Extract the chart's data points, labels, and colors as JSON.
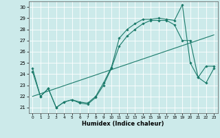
{
  "xlabel": "Humidex (Indice chaleur)",
  "background_color": "#cceaea",
  "grid_color": "#ffffff",
  "line_color": "#1a7a6a",
  "xlim": [
    -0.5,
    23.5
  ],
  "ylim": [
    20.5,
    30.5
  ],
  "yticks": [
    21,
    22,
    23,
    24,
    25,
    26,
    27,
    28,
    29,
    30
  ],
  "xticks": [
    0,
    1,
    2,
    3,
    4,
    5,
    6,
    7,
    8,
    9,
    10,
    11,
    12,
    13,
    14,
    15,
    16,
    17,
    18,
    19,
    20,
    21,
    22,
    23
  ],
  "series": [
    {
      "x": [
        0,
        1,
        2,
        3,
        4,
        5,
        6,
        7,
        8,
        9,
        10,
        11,
        12,
        13,
        14,
        15,
        16,
        17,
        18,
        19,
        20,
        21,
        22,
        23
      ],
      "y": [
        24.5,
        22.0,
        22.7,
        21.0,
        21.5,
        21.7,
        21.5,
        21.4,
        22.0,
        23.2,
        24.6,
        27.2,
        28.0,
        28.5,
        28.9,
        28.9,
        29.0,
        28.9,
        28.8,
        30.2,
        25.0,
        23.7,
        24.7,
        24.7
      ],
      "marker": true
    },
    {
      "x": [
        0,
        1,
        2,
        3,
        4,
        5,
        6,
        7,
        8,
        9,
        10,
        11,
        12,
        13,
        14,
        15,
        16,
        17,
        18,
        19,
        20,
        21,
        22,
        23
      ],
      "y": [
        24.2,
        22.0,
        22.7,
        21.0,
        21.5,
        21.7,
        21.4,
        21.3,
        21.9,
        23.0,
        24.5,
        26.5,
        27.4,
        28.0,
        28.5,
        28.8,
        28.8,
        28.8,
        28.4,
        27.0,
        27.0,
        23.7,
        23.2,
        24.5
      ],
      "marker": true
    },
    {
      "x": [
        0,
        23
      ],
      "y": [
        22.0,
        27.5
      ],
      "marker": false
    }
  ]
}
